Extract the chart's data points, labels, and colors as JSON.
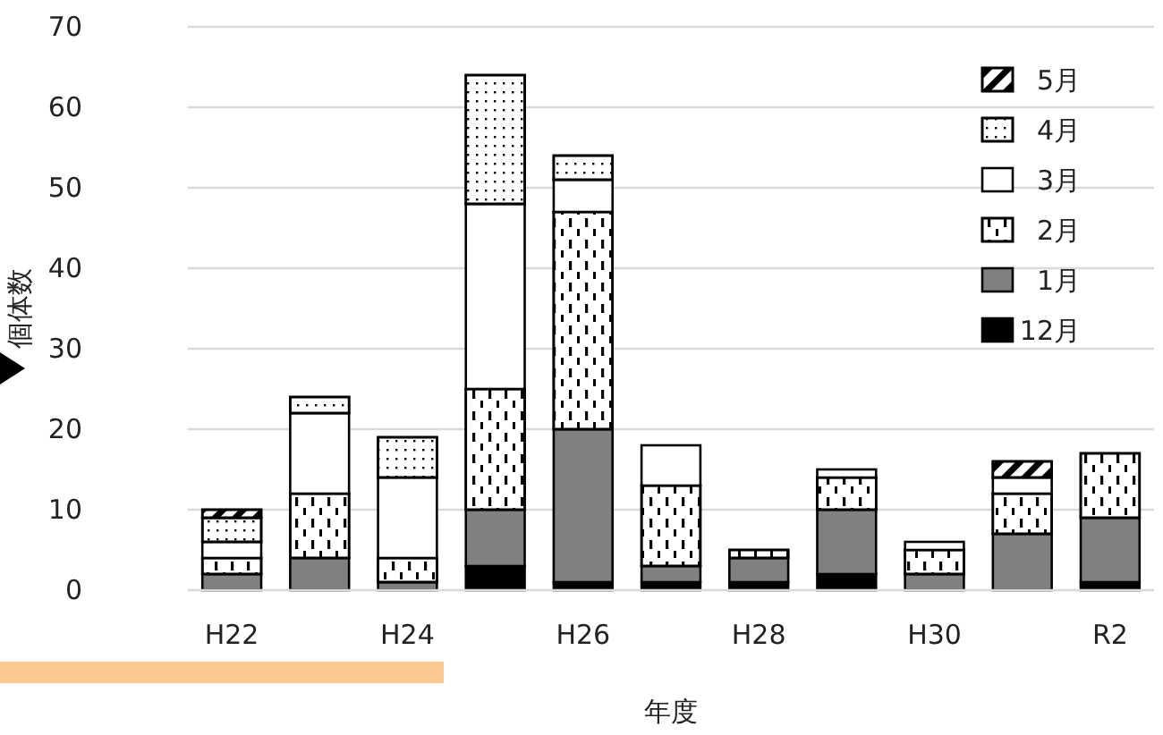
{
  "chart_data": {
    "type": "bar",
    "stacked": true,
    "ylabel": "個体数",
    "xlabel": "年度",
    "categories": [
      "H22",
      null,
      "H24",
      null,
      "H26",
      null,
      "H28",
      null,
      "H30",
      null,
      "R2"
    ],
    "series": [
      {
        "name": "12月",
        "color": "#000000",
        "values": [
          0,
          0,
          0,
          3,
          1,
          1,
          1,
          2,
          0,
          0,
          1
        ]
      },
      {
        "name": "1月",
        "color": "#808080",
        "values": [
          2,
          4,
          1,
          7,
          19,
          2,
          3,
          8,
          2,
          7,
          8
        ]
      },
      {
        "name": "2月",
        "color": "#ffffff",
        "values": [
          2,
          8,
          3,
          15,
          27,
          10,
          1,
          4,
          3,
          5,
          8
        ]
      },
      {
        "name": "3月",
        "color": "#ffffff",
        "values": [
          2,
          10,
          10,
          23,
          4,
          5,
          0,
          1,
          1,
          2,
          0
        ]
      },
      {
        "name": "4月",
        "color": "#ffffff",
        "values": [
          3,
          2,
          5,
          16,
          3,
          0,
          0,
          0,
          0,
          0,
          0
        ]
      },
      {
        "name": "5月",
        "color": "#ffffff",
        "values": [
          1,
          0,
          0,
          0,
          0,
          0,
          0,
          0,
          0,
          2,
          0
        ]
      }
    ],
    "ylim": [
      0,
      70
    ],
    "yticks": [
      0,
      10,
      20,
      30,
      40,
      50,
      60,
      70
    ],
    "grid": "y",
    "legend": "top right"
  }
}
